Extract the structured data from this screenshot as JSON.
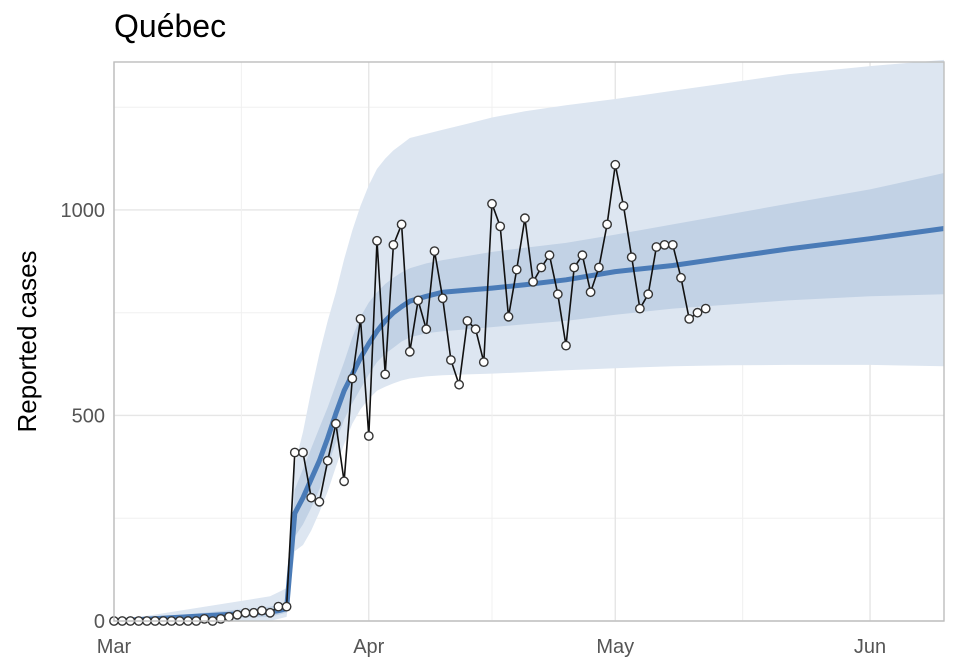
{
  "chart_data": {
    "type": "line",
    "title": "Québec",
    "xlabel": "",
    "ylabel": "Reported cases",
    "x_range": [
      "2020-03-01",
      "2020-06-10"
    ],
    "ylim": [
      0,
      1360
    ],
    "x_ticks": [
      {
        "date": "2020-03-01",
        "label": "Mar"
      },
      {
        "date": "2020-04-01",
        "label": "Apr"
      },
      {
        "date": "2020-05-01",
        "label": "May"
      },
      {
        "date": "2020-06-01",
        "label": "Jun"
      }
    ],
    "y_ticks": [
      0,
      500,
      1000
    ],
    "grid": true,
    "colors": {
      "fit_line": "#4a7bb7",
      "inner_band": "#b0c4de",
      "outer_band": "#dde6f1",
      "observed_line": "#111111",
      "point_fill": "#ffffff",
      "point_stroke": "#333333",
      "grid": "#e6e6e6",
      "panel_border": "#bdbdbd"
    },
    "observed": {
      "dates": [
        "2020-03-01",
        "2020-03-02",
        "2020-03-03",
        "2020-03-04",
        "2020-03-05",
        "2020-03-06",
        "2020-03-07",
        "2020-03-08",
        "2020-03-09",
        "2020-03-10",
        "2020-03-11",
        "2020-03-12",
        "2020-03-13",
        "2020-03-14",
        "2020-03-15",
        "2020-03-16",
        "2020-03-17",
        "2020-03-18",
        "2020-03-19",
        "2020-03-20",
        "2020-03-21",
        "2020-03-22",
        "2020-03-23",
        "2020-03-24",
        "2020-03-25",
        "2020-03-26",
        "2020-03-27",
        "2020-03-28",
        "2020-03-29",
        "2020-03-30",
        "2020-03-31",
        "2020-04-01",
        "2020-04-02",
        "2020-04-03",
        "2020-04-04",
        "2020-04-05",
        "2020-04-06",
        "2020-04-07",
        "2020-04-08",
        "2020-04-09",
        "2020-04-10",
        "2020-04-11",
        "2020-04-12",
        "2020-04-13",
        "2020-04-14",
        "2020-04-15",
        "2020-04-16",
        "2020-04-17",
        "2020-04-18",
        "2020-04-19",
        "2020-04-20",
        "2020-04-21",
        "2020-04-22",
        "2020-04-23",
        "2020-04-24",
        "2020-04-25",
        "2020-04-26",
        "2020-04-27",
        "2020-04-28",
        "2020-04-29",
        "2020-04-30",
        "2020-05-01",
        "2020-05-02",
        "2020-05-03",
        "2020-05-04",
        "2020-05-05",
        "2020-05-06",
        "2020-05-07",
        "2020-05-08",
        "2020-05-09",
        "2020-05-10",
        "2020-05-11",
        "2020-05-12"
      ],
      "values": [
        0,
        0,
        0,
        0,
        0,
        0,
        0,
        0,
        0,
        0,
        0,
        5,
        0,
        5,
        10,
        15,
        20,
        20,
        25,
        20,
        35,
        35,
        410,
        410,
        300,
        290,
        390,
        480,
        340,
        590,
        735,
        450,
        925,
        600,
        915,
        965,
        655,
        780,
        710,
        900,
        785,
        635,
        575,
        730,
        710,
        630,
        1015,
        960,
        740,
        855,
        980,
        825,
        860,
        890,
        795,
        670,
        860,
        890,
        800,
        860,
        965,
        1110,
        1010,
        885,
        760,
        795,
        910,
        915,
        915,
        835,
        735,
        750,
        760
      ]
    },
    "fit": {
      "dates": [
        "2020-03-01",
        "2020-03-20",
        "2020-03-21",
        "2020-03-22",
        "2020-03-23",
        "2020-03-24",
        "2020-03-25",
        "2020-03-26",
        "2020-03-27",
        "2020-03-28",
        "2020-03-29",
        "2020-03-30",
        "2020-03-31",
        "2020-04-01",
        "2020-04-02",
        "2020-04-03",
        "2020-04-04",
        "2020-04-05",
        "2020-04-06",
        "2020-04-08",
        "2020-04-10",
        "2020-04-13",
        "2020-04-16",
        "2020-04-20",
        "2020-04-25",
        "2020-05-01",
        "2020-05-08",
        "2020-05-15",
        "2020-05-22",
        "2020-06-01",
        "2020-06-10"
      ],
      "values": [
        0,
        22,
        25,
        30,
        262,
        300,
        345,
        390,
        445,
        505,
        560,
        600,
        640,
        675,
        705,
        730,
        750,
        765,
        778,
        790,
        800,
        805,
        810,
        818,
        830,
        850,
        865,
        885,
        905,
        930,
        955
      ],
      "inner_lower": [
        0,
        10,
        15,
        20,
        205,
        235,
        275,
        320,
        375,
        435,
        490,
        530,
        565,
        600,
        630,
        650,
        665,
        680,
        690,
        700,
        705,
        710,
        715,
        722,
        730,
        745,
        760,
        770,
        780,
        790,
        795
      ],
      "inner_upper": [
        0,
        35,
        40,
        45,
        320,
        370,
        420,
        470,
        520,
        575,
        630,
        690,
        740,
        775,
        800,
        820,
        835,
        848,
        858,
        870,
        878,
        888,
        898,
        908,
        920,
        940,
        965,
        990,
        1015,
        1050,
        1090
      ],
      "outer_lower": [
        0,
        0,
        5,
        10,
        170,
        185,
        220,
        265,
        315,
        375,
        430,
        480,
        515,
        540,
        560,
        570,
        578,
        585,
        590,
        595,
        598,
        600,
        602,
        605,
        610,
        615,
        620,
        622,
        623,
        623,
        620
      ],
      "outer_upper": [
        0,
        60,
        70,
        80,
        380,
        460,
        560,
        650,
        730,
        800,
        880,
        950,
        1010,
        1060,
        1100,
        1125,
        1145,
        1160,
        1175,
        1185,
        1195,
        1210,
        1225,
        1240,
        1255,
        1270,
        1290,
        1310,
        1330,
        1350,
        1365
      ]
    }
  }
}
